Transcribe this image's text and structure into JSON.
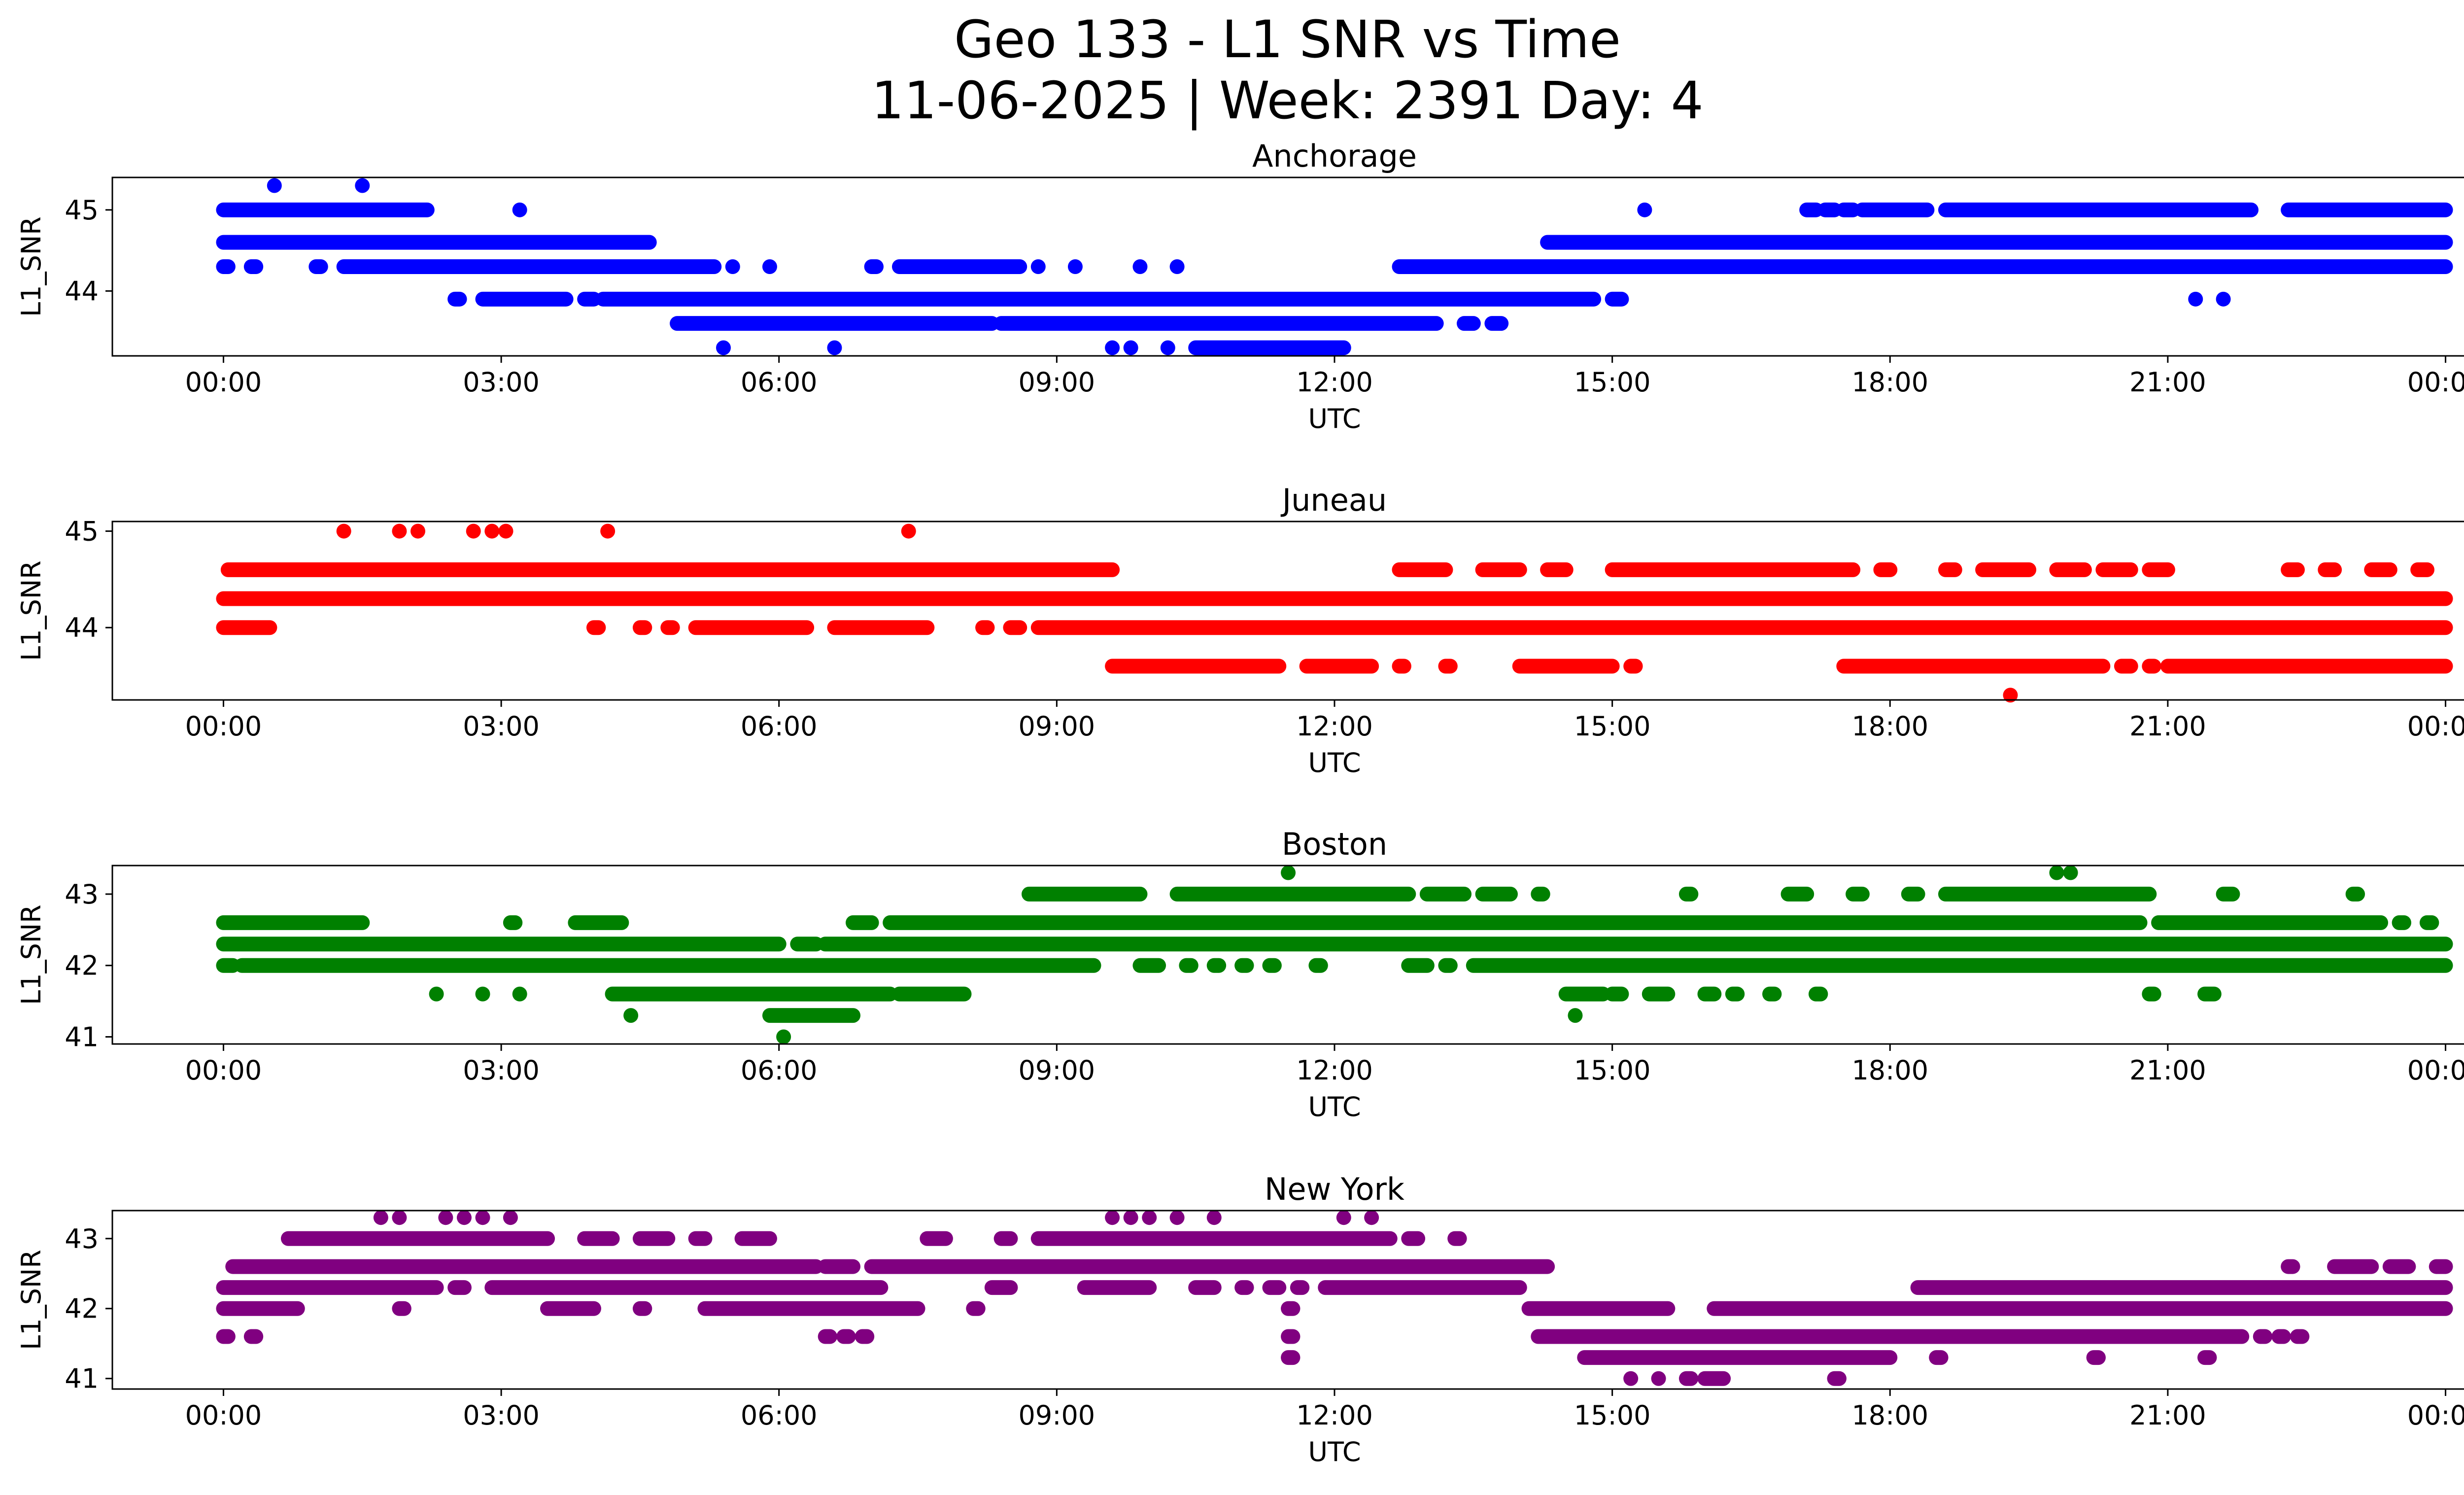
{
  "figure": {
    "title_line1": "Geo 133 - L1 SNR vs Time",
    "title_line2": "11-06-2025 | Week: 2391 Day: 4"
  },
  "chart_data": [
    {
      "type": "scatter",
      "title": "Anchorage",
      "color": "#0000ff",
      "xlabel": "UTC",
      "ylabel": "L1_SNR",
      "xlim_hours": [
        -1.2,
        25.2
      ],
      "ylim": [
        43.2,
        45.4
      ],
      "yticks": [
        44,
        45
      ],
      "xticks": [
        "00:00",
        "03:00",
        "06:00",
        "09:00",
        "12:00",
        "15:00",
        "18:00",
        "21:00",
        "00:00"
      ],
      "bands": [
        {
          "y": 45.0,
          "segments": [
            [
              0.0,
              2.2
            ],
            [
              17.1,
              17.2
            ],
            [
              17.3,
              17.4
            ],
            [
              17.5,
              17.6
            ],
            [
              17.7,
              18.4
            ],
            [
              18.6,
              21.9
            ],
            [
              22.3,
              24.0
            ]
          ]
        },
        {
          "y": 44.6,
          "segments": [
            [
              0.0,
              4.6
            ],
            [
              14.3,
              24.0
            ]
          ]
        },
        {
          "y": 44.3,
          "segments": [
            [
              0.0,
              0.05
            ],
            [
              0.3,
              0.35
            ],
            [
              1.0,
              1.05
            ],
            [
              1.3,
              5.3
            ],
            [
              7.0,
              7.05
            ],
            [
              7.3,
              8.6
            ],
            [
              12.7,
              24.0
            ]
          ]
        },
        {
          "y": 43.9,
          "segments": [
            [
              2.5,
              2.55
            ],
            [
              2.8,
              3.7
            ],
            [
              3.9,
              4.0
            ],
            [
              4.1,
              14.8
            ],
            [
              15.0,
              15.1
            ]
          ]
        },
        {
          "y": 43.6,
          "segments": [
            [
              4.9,
              8.3
            ],
            [
              8.4,
              13.1
            ],
            [
              13.4,
              13.5
            ],
            [
              13.7,
              13.8
            ]
          ]
        },
        {
          "y": 43.3,
          "segments": [
            [
              10.5,
              12.1
            ]
          ]
        }
      ],
      "points": [
        {
          "x": 0.55,
          "y": 45.3
        },
        {
          "x": 1.5,
          "y": 45.3
        },
        {
          "x": 3.2,
          "y": 45.0
        },
        {
          "x": 15.35,
          "y": 45.0
        },
        {
          "x": 5.5,
          "y": 44.3
        },
        {
          "x": 5.9,
          "y": 44.3
        },
        {
          "x": 8.8,
          "y": 44.3
        },
        {
          "x": 9.2,
          "y": 44.3
        },
        {
          "x": 9.9,
          "y": 44.3
        },
        {
          "x": 10.3,
          "y": 44.3
        },
        {
          "x": 5.4,
          "y": 43.3
        },
        {
          "x": 6.6,
          "y": 43.3
        },
        {
          "x": 9.6,
          "y": 43.3
        },
        {
          "x": 9.8,
          "y": 43.3
        },
        {
          "x": 10.2,
          "y": 43.3
        },
        {
          "x": 21.3,
          "y": 43.9
        },
        {
          "x": 21.6,
          "y": 43.9
        }
      ]
    },
    {
      "type": "scatter",
      "title": "Juneau",
      "color": "#ff0000",
      "xlabel": "UTC",
      "ylabel": "L1_SNR",
      "xlim_hours": [
        -1.2,
        25.2
      ],
      "ylim": [
        43.25,
        45.1
      ],
      "yticks": [
        44,
        45
      ],
      "xticks": [
        "00:00",
        "03:00",
        "06:00",
        "09:00",
        "12:00",
        "15:00",
        "18:00",
        "21:00",
        "00:00"
      ],
      "bands": [
        {
          "y": 44.6,
          "segments": [
            [
              0.05,
              9.6
            ],
            [
              12.7,
              13.2
            ],
            [
              13.6,
              14.0
            ],
            [
              14.3,
              14.5
            ],
            [
              15.0,
              17.6
            ],
            [
              17.9,
              18.0
            ],
            [
              18.6,
              18.7
            ],
            [
              19.0,
              19.5
            ],
            [
              19.8,
              20.1
            ],
            [
              20.3,
              20.6
            ],
            [
              20.8,
              21.0
            ],
            [
              22.3,
              22.4
            ],
            [
              22.7,
              22.8
            ],
            [
              23.2,
              23.4
            ],
            [
              23.7,
              23.8
            ]
          ]
        },
        {
          "y": 44.3,
          "segments": [
            [
              0.0,
              24.0
            ]
          ]
        },
        {
          "y": 44.0,
          "segments": [
            [
              0.0,
              0.5
            ],
            [
              4.0,
              4.05
            ],
            [
              4.5,
              4.55
            ],
            [
              4.8,
              4.85
            ],
            [
              5.1,
              6.3
            ],
            [
              6.6,
              7.6
            ],
            [
              8.2,
              8.25
            ],
            [
              8.5,
              8.6
            ],
            [
              8.8,
              24.0
            ]
          ]
        },
        {
          "y": 43.6,
          "segments": [
            [
              9.6,
              11.4
            ],
            [
              11.7,
              12.4
            ],
            [
              12.7,
              12.75
            ],
            [
              13.2,
              13.25
            ],
            [
              14.0,
              15.0
            ],
            [
              15.2,
              15.25
            ],
            [
              17.5,
              20.3
            ],
            [
              20.5,
              20.6
            ],
            [
              20.8,
              20.85
            ],
            [
              21.0,
              24.0
            ]
          ]
        }
      ],
      "points": [
        {
          "x": 1.3,
          "y": 45.0
        },
        {
          "x": 1.9,
          "y": 45.0
        },
        {
          "x": 2.1,
          "y": 45.0
        },
        {
          "x": 2.7,
          "y": 45.0
        },
        {
          "x": 2.9,
          "y": 45.0
        },
        {
          "x": 3.05,
          "y": 45.0
        },
        {
          "x": 4.15,
          "y": 45.0
        },
        {
          "x": 7.4,
          "y": 45.0
        },
        {
          "x": 19.3,
          "y": 43.3
        }
      ]
    },
    {
      "type": "scatter",
      "title": "Boston",
      "color": "#008000",
      "xlabel": "UTC",
      "ylabel": "L1_SNR",
      "xlim_hours": [
        -1.2,
        25.2
      ],
      "ylim": [
        40.9,
        43.4
      ],
      "yticks": [
        41,
        42,
        43
      ],
      "xticks": [
        "00:00",
        "03:00",
        "06:00",
        "09:00",
        "12:00",
        "15:00",
        "18:00",
        "21:00",
        "00:00"
      ],
      "bands": [
        {
          "y": 43.0,
          "segments": [
            [
              8.7,
              9.9
            ],
            [
              10.3,
              12.8
            ],
            [
              13.0,
              13.4
            ],
            [
              13.6,
              13.9
            ],
            [
              14.2,
              14.25
            ],
            [
              15.8,
              15.85
            ],
            [
              16.9,
              17.1
            ],
            [
              17.6,
              17.7
            ],
            [
              18.2,
              18.3
            ],
            [
              18.6,
              20.8
            ],
            [
              21.6,
              21.7
            ],
            [
              23.0,
              23.05
            ]
          ]
        },
        {
          "y": 42.6,
          "segments": [
            [
              0.0,
              1.5
            ],
            [
              3.1,
              3.15
            ],
            [
              3.8,
              4.3
            ],
            [
              6.8,
              7.0
            ],
            [
              7.2,
              20.7
            ],
            [
              20.9,
              23.3
            ],
            [
              23.5,
              23.55
            ],
            [
              23.8,
              23.85
            ]
          ]
        },
        {
          "y": 42.3,
          "segments": [
            [
              0.0,
              6.0
            ],
            [
              6.2,
              6.4
            ],
            [
              6.5,
              24.0
            ]
          ]
        },
        {
          "y": 42.0,
          "segments": [
            [
              0.0,
              0.1
            ],
            [
              0.2,
              9.4
            ],
            [
              9.9,
              10.1
            ],
            [
              10.4,
              10.45
            ],
            [
              10.7,
              10.75
            ],
            [
              11.0,
              11.05
            ],
            [
              11.3,
              11.35
            ],
            [
              11.8,
              11.85
            ],
            [
              12.8,
              13.0
            ],
            [
              13.2,
              13.25
            ],
            [
              13.5,
              24.0
            ]
          ]
        },
        {
          "y": 41.6,
          "segments": [
            [
              4.2,
              7.2
            ],
            [
              7.3,
              8.0
            ],
            [
              14.5,
              14.9
            ],
            [
              15.0,
              15.1
            ],
            [
              15.4,
              15.6
            ],
            [
              16.0,
              16.1
            ],
            [
              16.3,
              16.35
            ],
            [
              16.7,
              16.75
            ],
            [
              17.2,
              17.25
            ],
            [
              20.8,
              20.85
            ],
            [
              21.4,
              21.5
            ]
          ]
        },
        {
          "y": 41.3,
          "segments": [
            [
              5.9,
              6.8
            ]
          ]
        }
      ],
      "points": [
        {
          "x": 11.5,
          "y": 43.3
        },
        {
          "x": 19.8,
          "y": 43.3
        },
        {
          "x": 19.95,
          "y": 43.3
        },
        {
          "x": 2.3,
          "y": 41.6
        },
        {
          "x": 2.8,
          "y": 41.6
        },
        {
          "x": 3.2,
          "y": 41.6
        },
        {
          "x": 4.4,
          "y": 41.3
        },
        {
          "x": 14.6,
          "y": 41.3
        },
        {
          "x": 6.05,
          "y": 41.0
        }
      ]
    },
    {
      "type": "scatter",
      "title": "New York",
      "color": "#800080",
      "xlabel": "UTC",
      "ylabel": "L1_SNR",
      "xlim_hours": [
        -1.2,
        25.2
      ],
      "ylim": [
        40.85,
        43.4
      ],
      "yticks": [
        41,
        42,
        43
      ],
      "xticks": [
        "00:00",
        "03:00",
        "06:00",
        "09:00",
        "12:00",
        "15:00",
        "18:00",
        "21:00",
        "00:00"
      ],
      "bands": [
        {
          "y": 43.0,
          "segments": [
            [
              0.7,
              3.5
            ],
            [
              3.9,
              4.2
            ],
            [
              4.5,
              4.8
            ],
            [
              5.1,
              5.2
            ],
            [
              5.6,
              5.9
            ],
            [
              7.6,
              7.8
            ],
            [
              8.4,
              8.5
            ],
            [
              8.8,
              12.6
            ],
            [
              12.8,
              12.9
            ],
            [
              13.3,
              13.35
            ]
          ]
        },
        {
          "y": 42.6,
          "segments": [
            [
              0.1,
              6.4
            ],
            [
              6.5,
              6.8
            ],
            [
              7.0,
              14.3
            ],
            [
              22.3,
              22.35
            ],
            [
              22.8,
              23.2
            ],
            [
              23.4,
              23.6
            ],
            [
              23.9,
              24.0
            ]
          ]
        },
        {
          "y": 42.3,
          "segments": [
            [
              0.0,
              2.3
            ],
            [
              2.5,
              2.6
            ],
            [
              2.9,
              7.1
            ],
            [
              8.3,
              8.5
            ],
            [
              9.3,
              10.0
            ],
            [
              10.5,
              10.7
            ],
            [
              11.0,
              11.05
            ],
            [
              11.3,
              11.4
            ],
            [
              11.6,
              11.65
            ],
            [
              11.9,
              14.0
            ],
            [
              18.3,
              24.0
            ]
          ]
        },
        {
          "y": 42.0,
          "segments": [
            [
              0.0,
              0.8
            ],
            [
              1.9,
              1.95
            ],
            [
              3.5,
              4.0
            ],
            [
              4.5,
              4.55
            ],
            [
              5.2,
              7.5
            ],
            [
              8.1,
              8.15
            ],
            [
              11.5,
              11.55
            ],
            [
              14.1,
              15.6
            ],
            [
              16.1,
              24.0
            ]
          ]
        },
        {
          "y": 41.6,
          "segments": [
            [
              0.0,
              0.05
            ],
            [
              0.3,
              0.35
            ],
            [
              6.5,
              6.55
            ],
            [
              6.7,
              6.75
            ],
            [
              6.9,
              6.95
            ],
            [
              11.5,
              11.55
            ],
            [
              14.2,
              21.8
            ],
            [
              22.0,
              22.05
            ],
            [
              22.2,
              22.25
            ],
            [
              22.4,
              22.45
            ]
          ]
        },
        {
          "y": 41.3,
          "segments": [
            [
              11.5,
              11.55
            ],
            [
              14.7,
              18.0
            ],
            [
              18.5,
              18.55
            ],
            [
              20.2,
              20.25
            ],
            [
              21.4,
              21.45
            ]
          ]
        },
        {
          "y": 41.0,
          "segments": [
            [
              15.8,
              15.85
            ],
            [
              16.0,
              16.2
            ],
            [
              17.4,
              17.45
            ]
          ]
        }
      ],
      "points": [
        {
          "x": 1.7,
          "y": 43.3
        },
        {
          "x": 1.9,
          "y": 43.3
        },
        {
          "x": 2.4,
          "y": 43.3
        },
        {
          "x": 2.6,
          "y": 43.3
        },
        {
          "x": 2.8,
          "y": 43.3
        },
        {
          "x": 3.1,
          "y": 43.3
        },
        {
          "x": 9.6,
          "y": 43.3
        },
        {
          "x": 9.8,
          "y": 43.3
        },
        {
          "x": 10.0,
          "y": 43.3
        },
        {
          "x": 10.3,
          "y": 43.3
        },
        {
          "x": 10.7,
          "y": 43.3
        },
        {
          "x": 12.1,
          "y": 43.3
        },
        {
          "x": 12.4,
          "y": 43.3
        },
        {
          "x": 15.2,
          "y": 41.0
        },
        {
          "x": 15.5,
          "y": 41.0
        }
      ]
    }
  ]
}
